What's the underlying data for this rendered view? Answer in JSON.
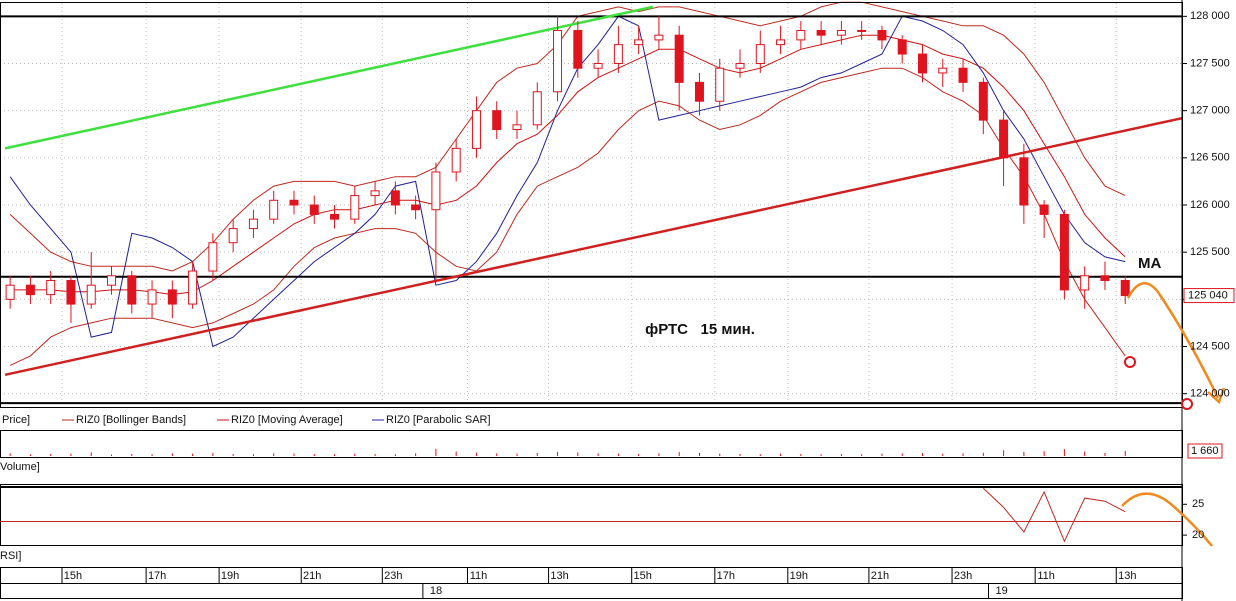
{
  "chart_data": {
    "type": "candlestick",
    "title": "фРТС   15 мин.",
    "ma_label": "MA",
    "xlim": [
      -0.5,
      57.8
    ],
    "ylim": [
      123880,
      128120
    ],
    "yticks": [
      {
        "value": 128000,
        "label": "128 000"
      },
      {
        "value": 127500,
        "label": "127 500"
      },
      {
        "value": 127000,
        "label": "127 000"
      },
      {
        "value": 126500,
        "label": "126 500"
      },
      {
        "value": 126000,
        "label": "126 000"
      },
      {
        "value": 125500,
        "label": "125 500"
      },
      {
        "value": 125000,
        "label": "125 000"
      },
      {
        "value": 124500,
        "label": "124 500"
      },
      {
        "value": 124000,
        "label": "124 000"
      }
    ],
    "grid": true,
    "up_color": "#ffffff",
    "down_color": "#e0141e",
    "candle_edge": "#e0141e",
    "open": [
      125000,
      125150,
      125050,
      125200,
      124950,
      125150,
      125250,
      124950,
      125100,
      124950,
      125300,
      125600,
      125750,
      125850,
      126050,
      126000,
      125900,
      125850,
      126100,
      126150,
      126000,
      125950,
      126350,
      126600,
      127000,
      126800,
      126850,
      127200,
      127850,
      127450,
      127500,
      127700,
      127750,
      127800,
      127300,
      127100,
      127450,
      127500,
      127700,
      127750,
      127850,
      127800,
      127850,
      127850,
      127750,
      127600,
      127400,
      127450,
      127300,
      126900,
      126500,
      126000,
      125900,
      125100,
      125250,
      125200
    ],
    "high": [
      125250,
      125250,
      125300,
      125250,
      125500,
      125350,
      125300,
      125200,
      125200,
      125400,
      125700,
      125850,
      125950,
      126150,
      126150,
      126100,
      126000,
      126200,
      126250,
      126250,
      126100,
      126450,
      126700,
      127150,
      127100,
      127000,
      127300,
      128000,
      127950,
      127650,
      127900,
      127900,
      128000,
      127900,
      127400,
      127550,
      127650,
      127850,
      127900,
      127950,
      127950,
      127950,
      127950,
      127900,
      127800,
      127700,
      127550,
      127550,
      127350,
      127000,
      126650,
      126050,
      125950,
      125350,
      125400,
      125250
    ],
    "low": [
      124900,
      124950,
      124950,
      124750,
      124900,
      125050,
      124850,
      124800,
      124800,
      124900,
      125200,
      125500,
      125650,
      125800,
      125900,
      125800,
      125750,
      125800,
      126000,
      125900,
      125850,
      125200,
      126250,
      126500,
      126700,
      126700,
      126800,
      127100,
      127350,
      127350,
      127400,
      127600,
      127650,
      127000,
      126950,
      127000,
      127350,
      127400,
      127600,
      127650,
      127700,
      127700,
      127750,
      127650,
      127500,
      127300,
      127250,
      127200,
      126750,
      126200,
      125800,
      125650,
      125000,
      124900,
      125100,
      124950
    ],
    "close": [
      125150,
      125050,
      125200,
      124950,
      125150,
      125250,
      124950,
      125100,
      124950,
      125300,
      125600,
      125750,
      125850,
      126050,
      126000,
      125900,
      125850,
      126100,
      126150,
      126000,
      125950,
      126350,
      126600,
      127000,
      126800,
      126850,
      127200,
      127850,
      127450,
      127500,
      127700,
      127750,
      127800,
      127300,
      127100,
      127450,
      127500,
      127700,
      127750,
      127850,
      127800,
      127850,
      127850,
      127750,
      127600,
      127400,
      127450,
      127300,
      126900,
      126500,
      126000,
      125900,
      125100,
      125250,
      125200,
      125040
    ],
    "last_label": "125 040",
    "indicators": {
      "bollinger_upper": {
        "color": "#c0281e",
        "values": [
          125900,
          125700,
          125500,
          125400,
          125350,
          125350,
          125350,
          125350,
          125300,
          125400,
          125600,
          125850,
          126050,
          126200,
          126250,
          126250,
          126250,
          126200,
          126250,
          126300,
          126300,
          126400,
          126700,
          127000,
          127300,
          127450,
          127500,
          127700,
          128000,
          128050,
          128100,
          128050,
          128100,
          128100,
          128050,
          128000,
          127950,
          127900,
          127950,
          128000,
          128100,
          128150,
          128150,
          128100,
          128050,
          128000,
          127950,
          127900,
          127900,
          127800,
          127600,
          127300,
          126900,
          126500,
          126200,
          126100
        ]
      },
      "bollinger_lower": {
        "color": "#c0281e",
        "values": [
          124300,
          124400,
          124600,
          124700,
          124750,
          124800,
          124800,
          124800,
          124750,
          124700,
          124750,
          124850,
          124950,
          125100,
          125350,
          125550,
          125650,
          125700,
          125750,
          125750,
          125700,
          125500,
          125350,
          125300,
          125500,
          125900,
          126200,
          126300,
          126400,
          126550,
          126800,
          127000,
          127100,
          127050,
          126900,
          126800,
          126850,
          126950,
          127100,
          127200,
          127300,
          127350,
          127400,
          127450,
          127450,
          127350,
          127200,
          127100,
          126950,
          126600,
          126300,
          125900,
          125400,
          125000,
          124700,
          124400
        ]
      },
      "moving_average": {
        "color": "#d01010",
        "values": [
          125100,
          125100,
          125100,
          125080,
          125080,
          125100,
          125100,
          125080,
          125050,
          125080,
          125200,
          125350,
          125500,
          125650,
          125800,
          125900,
          125950,
          125950,
          126000,
          126050,
          126050,
          126000,
          126050,
          126200,
          126450,
          126650,
          126750,
          126950,
          127200,
          127350,
          127450,
          127550,
          127650,
          127650,
          127550,
          127450,
          127400,
          127450,
          127550,
          127650,
          127700,
          127750,
          127800,
          127800,
          127750,
          127700,
          127600,
          127550,
          127450,
          127250,
          127000,
          126650,
          126300,
          125900,
          125650,
          125450
        ]
      },
      "parabolic_sar": {
        "color": "#20209a",
        "values": [
          126300,
          126000,
          125750,
          125500,
          124600,
          124650,
          125700,
          125650,
          125550,
          125400,
          124500,
          124600,
          124800,
          125000,
          125200,
          125400,
          125550,
          125700,
          125900,
          126200,
          126250,
          125150,
          125200,
          125400,
          125700,
          126100,
          126450,
          127000,
          127450,
          127700,
          128000,
          127900,
          126900,
          126950,
          127000,
          127050,
          127100,
          127150,
          127200,
          127250,
          127350,
          127400,
          127500,
          127600,
          128000,
          127950,
          127850,
          127700,
          127400,
          127000,
          126700,
          126300,
          125900,
          125600,
          125450,
          125400
        ]
      }
    },
    "hlines": [
      128000,
      125240,
      123900
    ],
    "hline_color": "#000000",
    "trendlines": [
      {
        "color": "#3ee03e",
        "x": [
          -0.25,
          31.7
        ],
        "y": [
          126600,
          128100
        ]
      },
      {
        "color": "#d02020",
        "x": [
          -0.25,
          57.8
        ],
        "y": [
          124200,
          126920
        ]
      }
    ],
    "legend_price": "Price]",
    "legend": [
      {
        "label": "RIZ0 [Bollinger Bands]",
        "color": "#c0281e"
      },
      {
        "label": "RIZ0 [Moving Average]",
        "color": "#d01010"
      },
      {
        "label": "RIZ0 [Parabolic SAR]",
        "color": "#20209a"
      }
    ],
    "volume": {
      "title": "Volume]",
      "color": "#e0141e",
      "ylim": [
        0,
        8000
      ],
      "values": [
        900,
        600,
        700,
        800,
        1200,
        500,
        700,
        600,
        900,
        800,
        1000,
        700,
        600,
        900,
        800,
        700,
        600,
        800,
        700,
        600,
        900,
        2400,
        1500,
        1100,
        900,
        800,
        1000,
        1400,
        1200,
        900,
        800,
        700,
        900,
        1300,
        1000,
        800,
        700,
        600,
        800,
        700,
        600,
        700,
        600,
        800,
        900,
        1000,
        800,
        900,
        1100,
        1900,
        1400,
        1600,
        2300,
        1500,
        1000,
        1660
      ],
      "last_label": "1 660"
    },
    "rsi": {
      "title": "RSI]",
      "color": "#c0281e",
      "ylim": [
        18.4,
        27.8
      ],
      "yticks": [
        25,
        20
      ],
      "level": 22.2,
      "values": [
        null,
        null,
        null,
        null,
        null,
        null,
        null,
        null,
        null,
        null,
        null,
        null,
        null,
        null,
        null,
        null,
        null,
        null,
        null,
        null,
        null,
        null,
        null,
        null,
        null,
        null,
        null,
        null,
        null,
        null,
        null,
        null,
        null,
        null,
        null,
        null,
        null,
        null,
        null,
        null,
        null,
        null,
        null,
        null,
        null,
        null,
        null,
        null,
        27.6,
        24.5,
        20.5,
        27,
        19,
        26,
        25.5,
        23.8
      ]
    },
    "time_labels": [
      {
        "x": 3.1,
        "label": "15h"
      },
      {
        "x": 7.25,
        "label": "17h"
      },
      {
        "x": 10.85,
        "label": "19h"
      },
      {
        "x": 14.9,
        "label": "21h"
      },
      {
        "x": 18.9,
        "label": "23h"
      },
      {
        "x": 23.1,
        "label": "11h"
      },
      {
        "x": 27.1,
        "label": "13h"
      },
      {
        "x": 31.2,
        "label": "15h"
      },
      {
        "x": 35.3,
        "label": "17h"
      },
      {
        "x": 38.9,
        "label": "19h"
      },
      {
        "x": 42.9,
        "label": "21h"
      },
      {
        "x": 47.0,
        "label": "23h"
      },
      {
        "x": 51.1,
        "label": "11h"
      },
      {
        "x": 55.1,
        "label": "13h"
      }
    ],
    "date_labels": [
      {
        "x": 20.9,
        "label": "18"
      },
      {
        "x": 48.8,
        "label": "19"
      }
    ]
  }
}
